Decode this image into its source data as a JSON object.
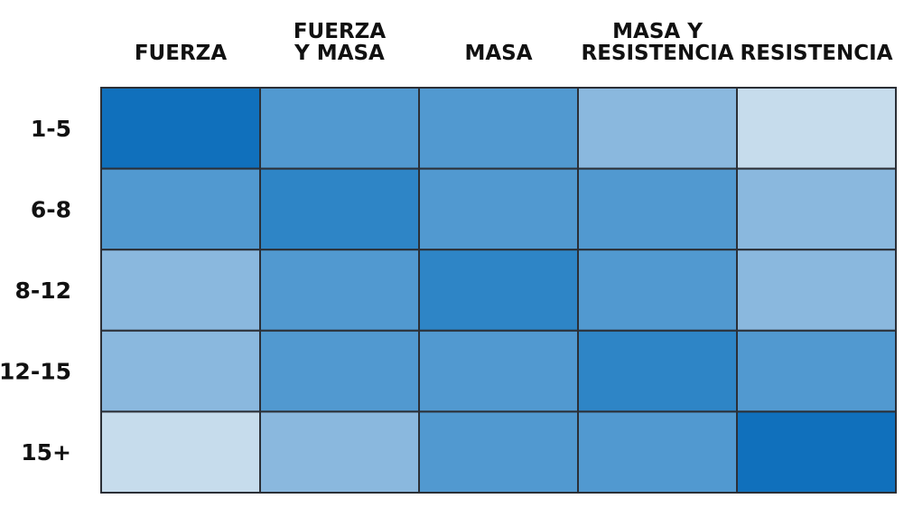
{
  "chart_data": {
    "type": "heatmap",
    "columns": [
      "FUERZA",
      "FUERZA Y MASA",
      "MASA",
      "MASA Y RESISTENCIA",
      "RESISTENCIA"
    ],
    "column_labels": [
      [
        "FUERZA"
      ],
      [
        "FUERZA",
        "Y MASA"
      ],
      [
        "MASA"
      ],
      [
        "MASA Y",
        "RESISTENCIA"
      ],
      [
        "RESISTENCIA"
      ]
    ],
    "rows": [
      "1-5",
      "6-8",
      "8-12",
      "12-15",
      "15+"
    ],
    "values": [
      [
        5,
        3,
        3,
        2,
        1
      ],
      [
        3,
        4,
        3,
        3,
        2
      ],
      [
        2,
        3,
        4,
        3,
        2
      ],
      [
        2,
        3,
        3,
        4,
        3
      ],
      [
        1,
        2,
        3,
        3,
        5
      ]
    ],
    "color_scale": {
      "1": "#c6dcec",
      "2": "#8ab8de",
      "3": "#5199d0",
      "4": "#2e85c6",
      "5": "#1070bc"
    },
    "grid": true,
    "legend": "none"
  }
}
